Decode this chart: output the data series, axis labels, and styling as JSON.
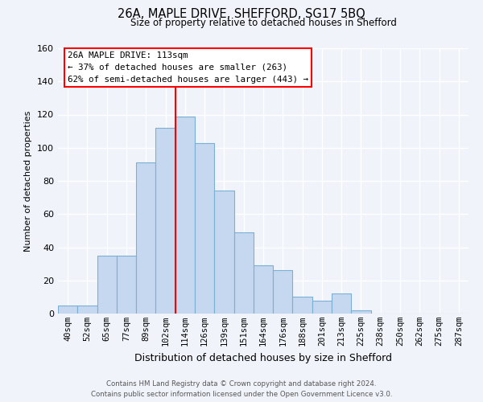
{
  "title": "26A, MAPLE DRIVE, SHEFFORD, SG17 5BQ",
  "subtitle": "Size of property relative to detached houses in Shefford",
  "xlabel": "Distribution of detached houses by size in Shefford",
  "ylabel": "Number of detached properties",
  "bar_labels": [
    "40sqm",
    "52sqm",
    "65sqm",
    "77sqm",
    "89sqm",
    "102sqm",
    "114sqm",
    "126sqm",
    "139sqm",
    "151sqm",
    "164sqm",
    "176sqm",
    "188sqm",
    "201sqm",
    "213sqm",
    "225sqm",
    "238sqm",
    "250sqm",
    "262sqm",
    "275sqm",
    "287sqm"
  ],
  "bar_values": [
    5,
    5,
    35,
    35,
    91,
    112,
    119,
    103,
    74,
    49,
    29,
    26,
    10,
    8,
    12,
    2,
    0,
    0,
    0,
    0,
    0
  ],
  "bar_color": "#c5d8f0",
  "bar_edge_color": "#7bafd4",
  "vline_color": "red",
  "annotation_title": "26A MAPLE DRIVE: 113sqm",
  "annotation_line1": "← 37% of detached houses are smaller (263)",
  "annotation_line2": "62% of semi-detached houses are larger (443) →",
  "annotation_box_color": "white",
  "annotation_box_edge": "red",
  "ylim": [
    0,
    160
  ],
  "yticks": [
    0,
    20,
    40,
    60,
    80,
    100,
    120,
    140,
    160
  ],
  "footer1": "Contains HM Land Registry data © Crown copyright and database right 2024.",
  "footer2": "Contains public sector information licensed under the Open Government Licence v3.0.",
  "background_color": "#f0f4fa",
  "grid_color": "white"
}
